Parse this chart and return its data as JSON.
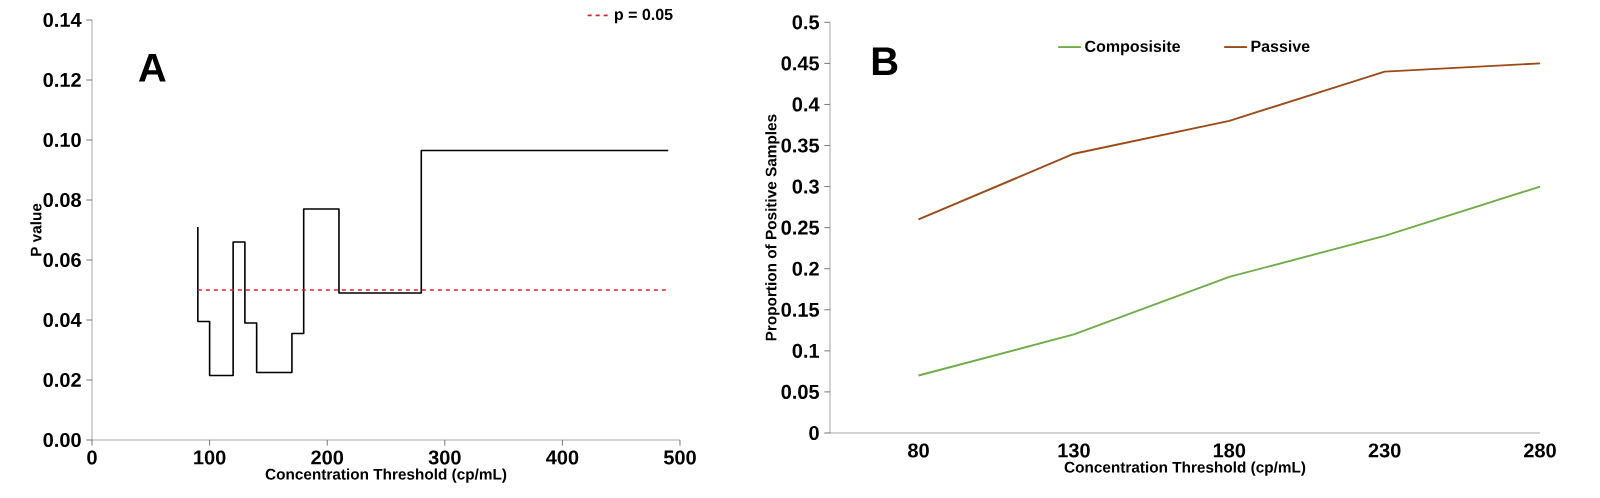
{
  "chart_data": [
    {
      "type": "step",
      "xlabel": "Concentration Threshold (cp/mL)",
      "ylabel": "P value",
      "annotations": [
        "A"
      ],
      "legend": "top right",
      "xlim": [
        0,
        500
      ],
      "ylim": [
        0,
        0.14
      ],
      "xticks": [
        0,
        100,
        200,
        300,
        400,
        500
      ],
      "yticks": [
        {
          "value": 0,
          "label": "0.00"
        },
        {
          "value": 0.02,
          "label": "0.02"
        },
        {
          "value": 0.04,
          "label": "0.04"
        },
        {
          "value": 0.06,
          "label": "0.06"
        },
        {
          "value": 0.08,
          "label": "0.08"
        },
        {
          "value": 0.1,
          "label": "0.10"
        },
        {
          "value": 0.12,
          "label": "0.12"
        },
        {
          "value": 0.14,
          "label": "0.14"
        }
      ],
      "series": [
        {
          "color": "#000000",
          "x": [
            90,
            90,
            100,
            120,
            130,
            140,
            170,
            180,
            210,
            280,
            490
          ],
          "values": [
            0.071,
            0.0395,
            0.0215,
            0.066,
            0.039,
            0.0225,
            0.0355,
            0.077,
            0.049,
            0.0965,
            0.0965
          ]
        },
        {
          "name": "p = 0.05",
          "type": "line",
          "line_style": "dashed",
          "color": "#d9242b",
          "x": [
            90,
            490
          ],
          "values": [
            0.05,
            0.05
          ]
        }
      ]
    },
    {
      "type": "line",
      "xlabel": "Concentration Threshold (cp/mL)",
      "ylabel": "Proportion of Positive Samples",
      "annotations": [
        "B"
      ],
      "legend": "top",
      "categories": [
        "80",
        "130",
        "180",
        "230",
        "280"
      ],
      "ylim": [
        0,
        0.5
      ],
      "yticks": [
        0,
        0.05,
        0.1,
        0.15,
        0.2,
        0.25,
        0.3,
        0.35,
        0.4,
        0.45,
        0.5
      ],
      "series": [
        {
          "name": "Composisite",
          "color": "#70ad47",
          "values": [
            0.07,
            0.12,
            0.19,
            0.24,
            0.3
          ]
        },
        {
          "name": "Passive",
          "color": "#9e4a17",
          "values": [
            0.26,
            0.34,
            0.38,
            0.44,
            0.45
          ]
        }
      ]
    }
  ]
}
